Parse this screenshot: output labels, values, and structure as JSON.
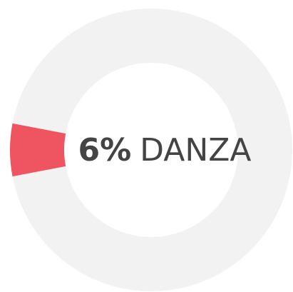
{
  "chart_data": {
    "type": "pie",
    "donut": true,
    "categories": [
      "DANZA",
      null
    ],
    "values": [
      6,
      94
    ],
    "value_labels": [
      "6%",
      null
    ],
    "colors": [
      "#ef5461",
      "#f2f2f2"
    ]
  }
}
